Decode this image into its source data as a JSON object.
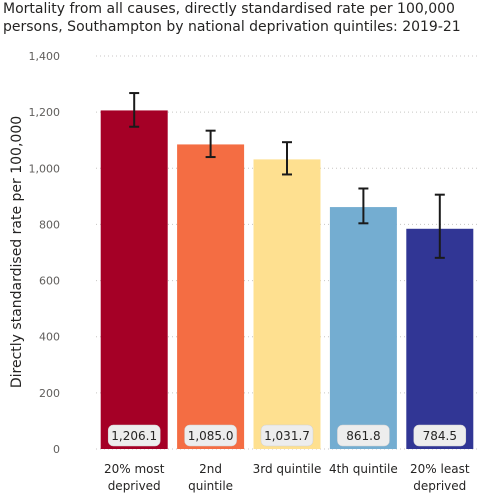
{
  "chart_data": {
    "type": "bar",
    "title": "Mortality from all causes, directly standardised rate per 100,000 persons, Southampton by national deprivation quintiles: 2019-21",
    "ylabel": "Directly standardised rate per 100,000",
    "xlabel": "",
    "ylim": [
      0,
      1400
    ],
    "yticks": [
      0,
      200,
      400,
      600,
      800,
      1000,
      1200,
      1400
    ],
    "ytick_labels": [
      "0",
      "200",
      "400",
      "600",
      "800",
      "1,000",
      "1,200",
      "1,400"
    ],
    "grid": true,
    "categories": [
      [
        "20% most",
        "deprived"
      ],
      [
        "2nd",
        "quintile"
      ],
      [
        "3rd quintile"
      ],
      [
        "4th quintile"
      ],
      [
        "20% least",
        "deprived"
      ]
    ],
    "values": [
      1206.1,
      1085.0,
      1031.7,
      861.8,
      784.5
    ],
    "data_labels": [
      "1,206.1",
      "1,085.0",
      "1,031.7",
      "861.8",
      "784.5"
    ],
    "error_low": [
      1148,
      1040,
      978,
      804,
      681
    ],
    "error_high": [
      1268,
      1134,
      1093,
      928,
      906
    ],
    "colors": [
      "#a50026",
      "#f46d43",
      "#fee090",
      "#74add1",
      "#313695"
    ]
  }
}
